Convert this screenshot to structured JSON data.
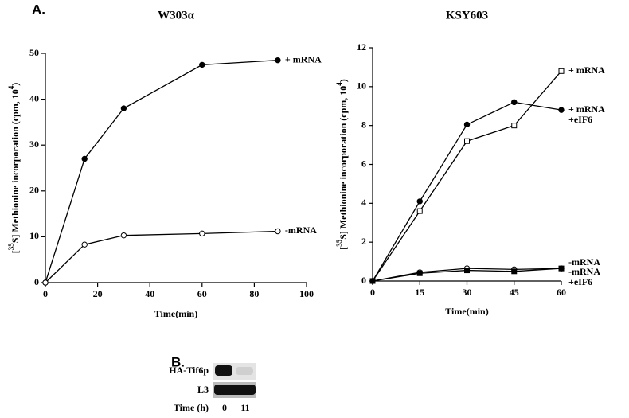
{
  "panel_labels": [
    "A.",
    "B."
  ],
  "chart_data": [
    {
      "type": "line",
      "title": "W303α",
      "xlabel": "Time(min)",
      "ylabel_parts": [
        "[",
        "35",
        "S] Methionine incorporation (cpm,  10",
        "4",
        ")"
      ],
      "x": [
        0,
        15,
        30,
        60,
        89
      ],
      "xlim": [
        0,
        100
      ],
      "xticks": [
        0,
        20,
        40,
        60,
        80,
        100
      ],
      "ylim": [
        0,
        50
      ],
      "yticks": [
        0,
        10,
        20,
        30,
        40,
        50
      ],
      "series": [
        {
          "name": [
            "+ mRNA"
          ],
          "color": "#000000",
          "marker": "circle",
          "filled": true,
          "values": [
            0,
            27,
            38,
            47.5,
            48.5
          ]
        },
        {
          "name": [
            "-mRNA"
          ],
          "color": "#000000",
          "marker": "circle",
          "filled": false,
          "values": [
            0,
            8.3,
            10.3,
            10.7,
            11.2
          ]
        }
      ]
    },
    {
      "type": "line",
      "title": "KSY603",
      "xlabel": "Time(min)",
      "ylabel_parts": [
        "[",
        "35",
        "S] Methionine incorporation (cpm,  10",
        "4",
        ")"
      ],
      "x": [
        0,
        15,
        30,
        45,
        60
      ],
      "xlim": [
        0,
        60
      ],
      "xticks": [
        0,
        15,
        30,
        45,
        60
      ],
      "ylim": [
        0,
        12
      ],
      "yticks": [
        0,
        2,
        4,
        6,
        8,
        10,
        12
      ],
      "series": [
        {
          "name": [
            "+ mRNA"
          ],
          "color": "#000000",
          "marker": "square",
          "filled": false,
          "values": [
            0,
            3.6,
            7.2,
            8.0,
            10.8
          ]
        },
        {
          "name": [
            "+ mRNA",
            "+eIF6"
          ],
          "color": "#000000",
          "marker": "circle",
          "filled": true,
          "values": [
            0,
            4.1,
            8.05,
            9.2,
            8.8
          ]
        },
        {
          "name": [
            "-mRNA"
          ],
          "color": "#000000",
          "marker": "circle",
          "filled": false,
          "values": [
            0,
            0.45,
            0.65,
            0.6,
            0.65
          ]
        },
        {
          "name": [
            "-mRNA",
            "+eIF6"
          ],
          "color": "#000000",
          "marker": "square",
          "filled": true,
          "values": [
            0,
            0.4,
            0.55,
            0.5,
            0.65
          ]
        }
      ]
    }
  ],
  "blot": {
    "rows": [
      "HA-Tif6p",
      "L3"
    ],
    "time_label": "Time (h)",
    "lanes": [
      "0",
      "11"
    ]
  }
}
